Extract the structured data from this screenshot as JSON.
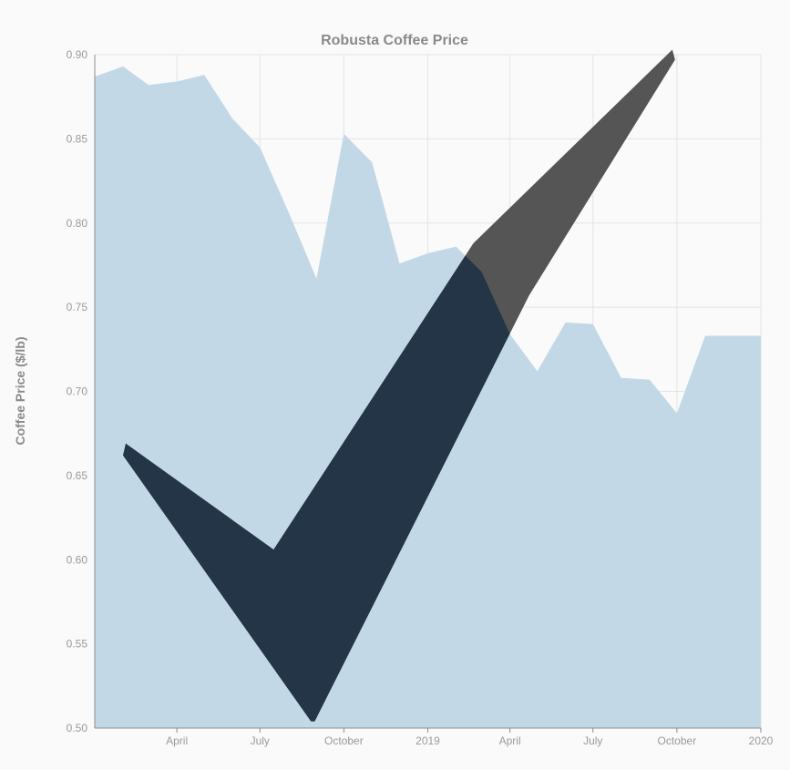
{
  "chart_data": {
    "type": "area",
    "title": "Robusta Coffee Price",
    "xlabel": "",
    "ylabel": "Coffee Price ($/lb)",
    "ylim": [
      0.5,
      0.9
    ],
    "y_ticks": [
      "0.50",
      "0.55",
      "0.60",
      "0.65",
      "0.70",
      "0.75",
      "0.80",
      "0.85",
      "0.90"
    ],
    "x_range": [
      "2018-01-01",
      "2020-01-01"
    ],
    "x_ticks": [
      {
        "date": "2018-04-01",
        "label": "April"
      },
      {
        "date": "2018-07-01",
        "label": "July"
      },
      {
        "date": "2018-10-01",
        "label": "October"
      },
      {
        "date": "2019-01-01",
        "label": "2019"
      },
      {
        "date": "2019-04-01",
        "label": "April"
      },
      {
        "date": "2019-07-01",
        "label": "July"
      },
      {
        "date": "2019-10-01",
        "label": "October"
      },
      {
        "date": "2020-01-01",
        "label": "2020"
      }
    ],
    "grid": true,
    "series": [
      {
        "color": "#c3d8e6",
        "points": [
          {
            "date": "2018-01-01",
            "value": 0.887
          },
          {
            "date": "2018-02-01",
            "value": 0.893
          },
          {
            "date": "2018-03-01",
            "value": 0.882
          },
          {
            "date": "2018-04-01",
            "value": 0.884
          },
          {
            "date": "2018-05-01",
            "value": 0.888
          },
          {
            "date": "2018-06-01",
            "value": 0.862
          },
          {
            "date": "2018-07-01",
            "value": 0.845
          },
          {
            "date": "2018-08-01",
            "value": 0.807
          },
          {
            "date": "2018-09-01",
            "value": 0.767
          },
          {
            "date": "2018-10-01",
            "value": 0.853
          },
          {
            "date": "2018-11-01",
            "value": 0.836
          },
          {
            "date": "2018-12-01",
            "value": 0.776
          },
          {
            "date": "2019-01-01",
            "value": 0.782
          },
          {
            "date": "2019-02-01",
            "value": 0.786
          },
          {
            "date": "2019-03-01",
            "value": 0.771
          },
          {
            "date": "2019-04-01",
            "value": 0.734
          },
          {
            "date": "2019-05-01",
            "value": 0.712
          },
          {
            "date": "2019-06-01",
            "value": 0.741
          },
          {
            "date": "2019-07-01",
            "value": 0.74
          },
          {
            "date": "2019-08-01",
            "value": 0.708
          },
          {
            "date": "2019-09-01",
            "value": 0.707
          },
          {
            "date": "2019-10-01",
            "value": 0.687
          },
          {
            "date": "2019-11-01",
            "value": 0.733
          },
          {
            "date": "2019-12-01",
            "value": 0.733
          }
        ]
      }
    ],
    "annotation": {
      "shape": "checkmark",
      "colors": {
        "dark": "#233546",
        "gray": "#555555"
      },
      "outline": [
        {
          "date": "2018-02-01",
          "value": 0.662
        },
        {
          "date": "2018-02-04",
          "value": 0.669
        },
        {
          "date": "2018-07-16",
          "value": 0.606
        },
        {
          "date": "2019-02-20",
          "value": 0.788
        },
        {
          "date": "2019-09-26",
          "value": 0.903
        },
        {
          "date": "2019-09-29",
          "value": 0.897
        },
        {
          "date": "2019-04-22",
          "value": 0.757
        },
        {
          "date": "2018-08-30",
          "value": 0.504
        },
        {
          "date": "2018-08-26",
          "value": 0.504
        }
      ]
    }
  }
}
